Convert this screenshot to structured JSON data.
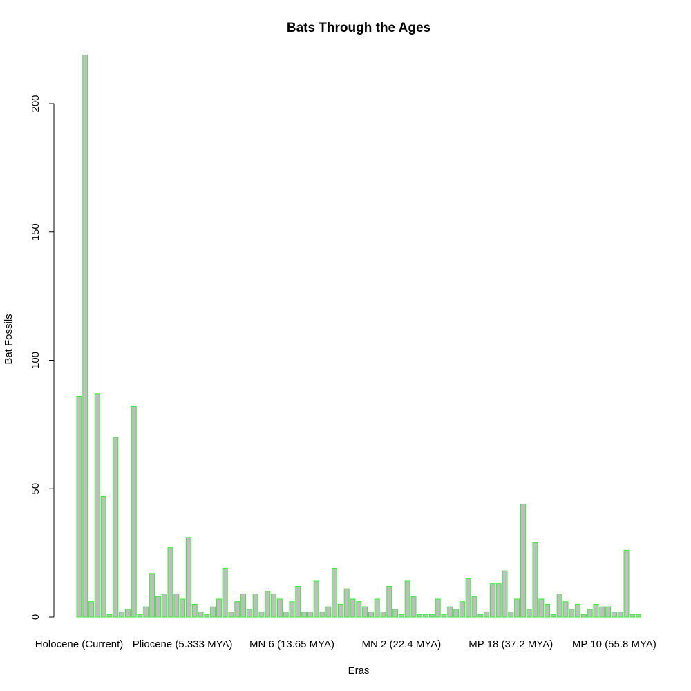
{
  "chart_data": {
    "type": "bar",
    "title": "Bats Through the Ages",
    "xlabel": "Eras",
    "ylabel": "Bat Fossils",
    "ylim": [
      0,
      220
    ],
    "yticks": [
      0,
      50,
      100,
      150,
      200
    ],
    "grid": false,
    "legend": "none",
    "bar_fill": "#bebebe",
    "bar_stroke": "#33ee33",
    "x_tick_labels": [
      {
        "bar_index": 0,
        "label": "Holocene (Current)"
      },
      {
        "bar_index": 17,
        "label": "Pliocene (5.333 MYA)"
      },
      {
        "bar_index": 35,
        "label": "MN 6 (13.65 MYA)"
      },
      {
        "bar_index": 53,
        "label": "MN 2 (22.4 MYA)"
      },
      {
        "bar_index": 71,
        "label": "MP 18 (37.2 MYA)"
      },
      {
        "bar_index": 88,
        "label": "MP 10 (55.8 MYA)"
      }
    ],
    "values": [
      86,
      219,
      6,
      87,
      47,
      1,
      70,
      2,
      3,
      82,
      1,
      4,
      17,
      8,
      9,
      27,
      9,
      7,
      31,
      5,
      2,
      1,
      4,
      7,
      19,
      2,
      6,
      9,
      3,
      9,
      2,
      10,
      9,
      7,
      2,
      6,
      12,
      2,
      2,
      14,
      2,
      4,
      19,
      5,
      11,
      7,
      6,
      4,
      2,
      7,
      2,
      12,
      3,
      1,
      14,
      8,
      1,
      1,
      1,
      7,
      1,
      4,
      3,
      6,
      15,
      8,
      1,
      2,
      13,
      13,
      18,
      2,
      7,
      44,
      3,
      29,
      7,
      5,
      1,
      9,
      6,
      3,
      5,
      1,
      3,
      5,
      4,
      4,
      2,
      2,
      26,
      1,
      1
    ]
  }
}
